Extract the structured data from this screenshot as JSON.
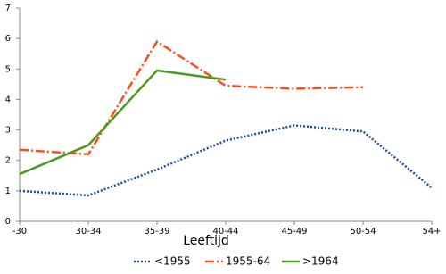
{
  "chart_data": {
    "type": "line",
    "x_label": "Leeftijd",
    "categories": [
      "-30",
      "30-34",
      "35-39",
      "40-44",
      "45-49",
      "50-54",
      "54+"
    ],
    "series": [
      {
        "name": "<1955",
        "color": "#1f4e9c",
        "dash": "2,2",
        "values": [
          1.0,
          0.85,
          1.7,
          2.65,
          3.15,
          2.95,
          1.1
        ]
      },
      {
        "name": "1955-64",
        "color": "#ff4b1a",
        "dash": "10,3,2,3",
        "values": [
          2.35,
          2.2,
          5.9,
          4.45,
          4.35,
          4.4,
          null
        ]
      },
      {
        "name": ">1964",
        "color": "#4c9a1f",
        "dash": "",
        "values": [
          1.55,
          2.5,
          4.95,
          4.65,
          null,
          null,
          null
        ]
      }
    ],
    "ylim": [
      0,
      7
    ],
    "yticks": [
      0,
      1,
      2,
      3,
      4,
      5,
      6,
      7
    ],
    "grid": false
  }
}
